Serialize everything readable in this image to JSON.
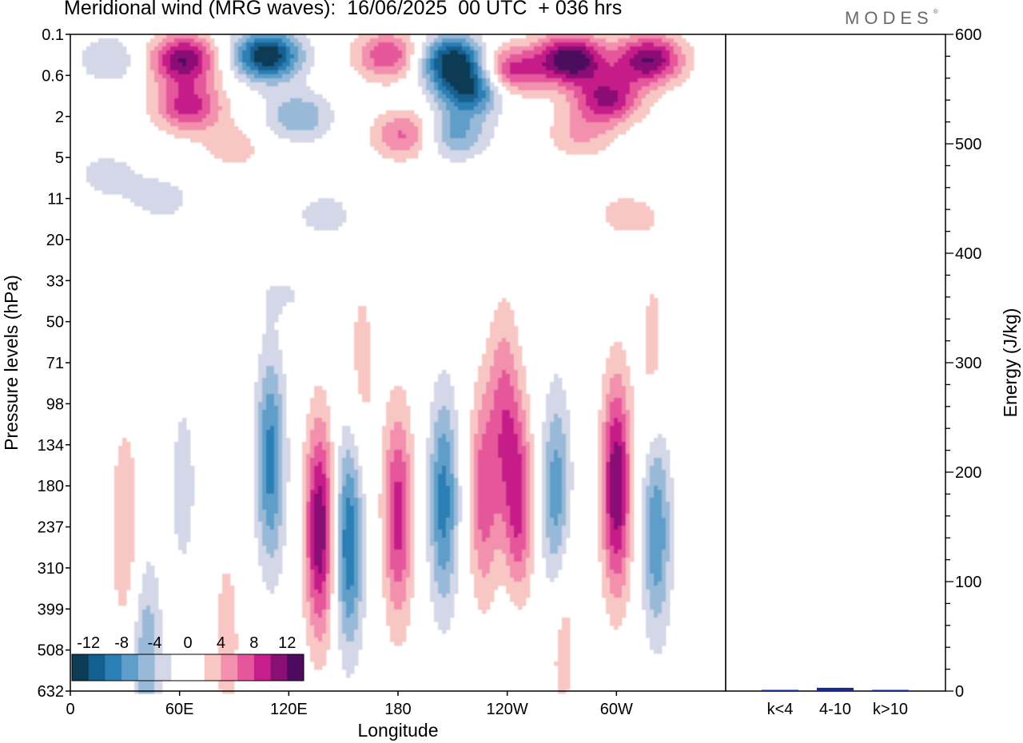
{
  "title": "Meridional wind (MRG waves):  16/06/2025  00 UTC  + 036 hrs",
  "logo": "MODES",
  "logo_mark": "®",
  "colors": {
    "neg": [
      "#0b3b55",
      "#12608f",
      "#2a7fb5",
      "#5f9ec9",
      "#99b9d8",
      "#d3d7e7"
    ],
    "pos": [
      "#f8c7c4",
      "#f290ae",
      "#e5579a",
      "#c61e8a",
      "#8a0f75",
      "#4d0a5e"
    ],
    "bar": "#1a2a8a"
  },
  "chart_data": [
    {
      "type": "heatmap",
      "title": "Meridional wind (MRG waves):  16/06/2025  00 UTC  + 036 hrs",
      "xlabel": "Longitude",
      "ylabel": "Pressure levels (hPa)",
      "x_ticks": [
        "0",
        "60E",
        "120E",
        "180",
        "120W",
        "60W"
      ],
      "y_ticks": [
        "0.1",
        "0.6",
        "2",
        "5",
        "11",
        "20",
        "33",
        "50",
        "71",
        "98",
        "134",
        "180",
        "237",
        "310",
        "399",
        "508",
        "632"
      ],
      "colorbar": {
        "labels": [
          "-12",
          "-8",
          "-4",
          "0",
          "4",
          "8",
          "12"
        ],
        "levels": [
          -14,
          -12,
          -10,
          -8,
          -6,
          -4,
          -2,
          2,
          4,
          6,
          8,
          10,
          12,
          14
        ]
      },
      "features": [
        {
          "lon": 22,
          "level": 0.3,
          "value": -4
        },
        {
          "lon": 62,
          "level": 0.3,
          "value": 12
        },
        {
          "lon": 108,
          "level": 0.25,
          "value": -14
        },
        {
          "lon": 175,
          "level": 0.25,
          "value": 8
        },
        {
          "lon": 210,
          "level": 0.3,
          "value": -13
        },
        {
          "lon": 275,
          "level": 0.3,
          "value": 14
        },
        {
          "lon": 318,
          "level": 0.3,
          "value": 12
        },
        {
          "lon": 240,
          "level": 0.5,
          "value": 10
        },
        {
          "lon": 220,
          "level": 0.9,
          "value": -12
        },
        {
          "lon": 295,
          "level": 1.2,
          "value": 10
        },
        {
          "lon": 65,
          "level": 1.5,
          "value": 9
        },
        {
          "lon": 125,
          "level": 2,
          "value": -6
        },
        {
          "lon": 185,
          "level": 3,
          "value": 7
        },
        {
          "lon": 210,
          "level": 3,
          "value": -7
        },
        {
          "lon": 280,
          "level": 3,
          "value": 4
        },
        {
          "lon": 90,
          "level": 4,
          "value": 3
        },
        {
          "lon": 20,
          "level": 7,
          "value": -3
        },
        {
          "lon": 50,
          "level": 11,
          "value": -3
        },
        {
          "lon": 140,
          "level": 14,
          "value": -3
        },
        {
          "lon": 305,
          "level": 14,
          "value": 3
        },
        {
          "lon": 120,
          "level": 38,
          "value": -2
        },
        {
          "lon": 40,
          "level": 55,
          "value": -2
        },
        {
          "lon": 320,
          "level": 70,
          "value": 3
        },
        {
          "lon": 160,
          "level": 75,
          "value": 3
        },
        {
          "lon": 110,
          "level": 150,
          "value": -9
        },
        {
          "lon": 137,
          "level": 240,
          "value": 12
        },
        {
          "lon": 153,
          "level": 260,
          "value": -10
        },
        {
          "lon": 180,
          "level": 220,
          "value": 9
        },
        {
          "lon": 205,
          "level": 200,
          "value": -9
        },
        {
          "lon": 227,
          "level": 190,
          "value": 7
        },
        {
          "lon": 246,
          "level": 220,
          "value": 10
        },
        {
          "lon": 238,
          "level": 105,
          "value": 6
        },
        {
          "lon": 267,
          "level": 200,
          "value": -8
        },
        {
          "lon": 300,
          "level": 180,
          "value": 12
        },
        {
          "lon": 322,
          "level": 240,
          "value": -8
        },
        {
          "lon": 270,
          "level": 420,
          "value": 4
        },
        {
          "lon": 245,
          "level": 370,
          "value": -3
        },
        {
          "lon": 30,
          "level": 240,
          "value": 4
        },
        {
          "lon": 62,
          "level": 180,
          "value": -3
        },
        {
          "lon": 42,
          "level": 560,
          "value": -6
        },
        {
          "lon": 86,
          "level": 480,
          "value": 3
        }
      ]
    },
    {
      "type": "bar",
      "ylabel": "Energy (J/kg)",
      "categories": [
        "k<4",
        "4-10",
        "k>10"
      ],
      "values": [
        0.4,
        3,
        0.4
      ],
      "ylim": [
        0,
        600
      ],
      "y_ticks": [
        "0",
        "100",
        "200",
        "300",
        "400",
        "500",
        "600"
      ]
    }
  ]
}
